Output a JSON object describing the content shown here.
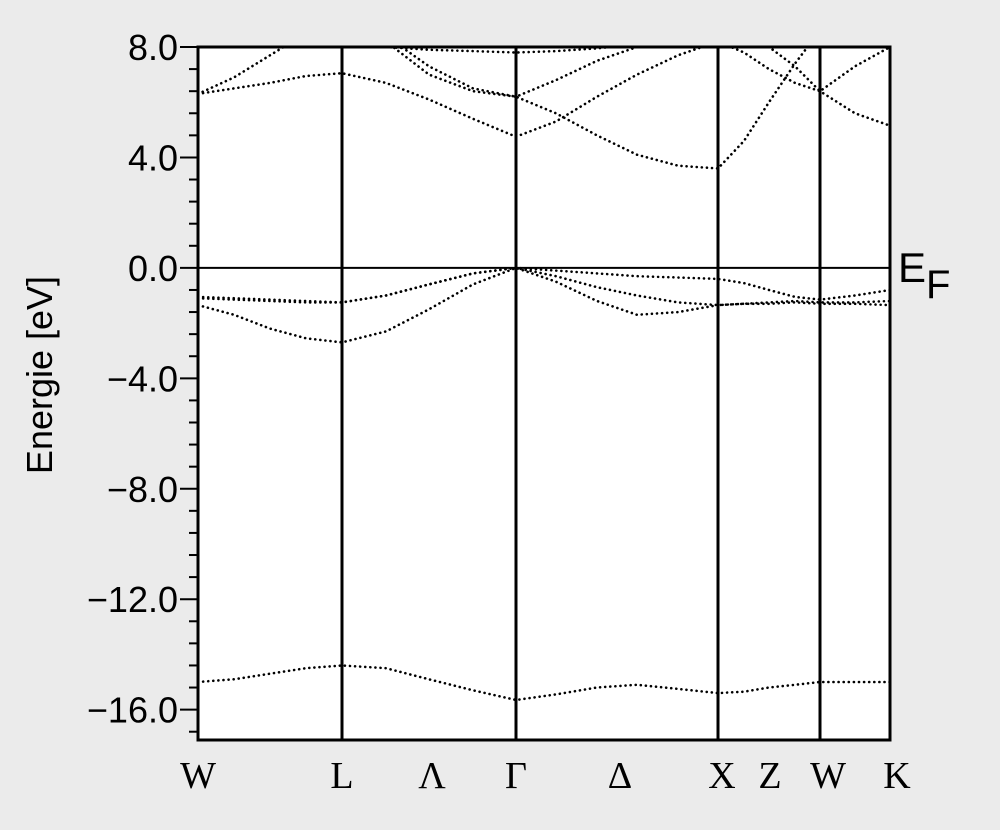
{
  "chart_data": {
    "type": "line",
    "ylabel": "Energie [eV]",
    "x": [
      0,
      0.36,
      0.72,
      1.08,
      1.44,
      1.88,
      2.31,
      2.75,
      3.18,
      3.58,
      3.99,
      4.39,
      4.8,
      5.2,
      5.46,
      5.71,
      5.97,
      6.22,
      6.57,
      6.92
    ],
    "xlim": [
      0,
      6.92
    ],
    "ylim": [
      -17.1,
      8
    ],
    "xticks": [
      {
        "value": 0,
        "label": "W"
      },
      {
        "value": 1.44,
        "label": "L"
      },
      {
        "value": 2.34,
        "label": "Λ"
      },
      {
        "value": 3.18,
        "label": "Γ"
      },
      {
        "value": 4.22,
        "label": "Δ"
      },
      {
        "value": 5.24,
        "label": "X"
      },
      {
        "value": 5.72,
        "label": "Z"
      },
      {
        "value": 6.3,
        "label": "W"
      },
      {
        "value": 6.99,
        "label": "K"
      }
    ],
    "vlines": [
      1.44,
      3.18,
      5.2,
      6.22
    ],
    "yticks": [
      {
        "value": 8,
        "label": "8.0"
      },
      {
        "value": 4,
        "label": "4.0"
      },
      {
        "value": 0,
        "label": "0.0"
      },
      {
        "value": -4,
        "label": "−4.0"
      },
      {
        "value": -8,
        "label": "−8.0"
      },
      {
        "value": -12,
        "label": "−12.0"
      },
      {
        "value": -16,
        "label": "−16.0"
      }
    ],
    "yminorticks": [
      -16.8,
      -15.2,
      -14.4,
      -13.6,
      -12.8,
      -11.2,
      -10.4,
      -9.6,
      -8.8,
      -7.2,
      -6.4,
      -5.6,
      -4.8,
      -3.2,
      -2.4,
      -1.6,
      -0.8,
      0.8,
      1.6,
      2.4,
      3.2,
      4.8,
      5.6,
      6.4,
      7.2
    ],
    "fermi_level": 0,
    "fermi_label": "E",
    "fermi_subscript": "F",
    "series": [
      {
        "color": "#000000",
        "values": [
          -15.0,
          -14.9,
          -14.7,
          -14.5,
          -14.4,
          -14.5,
          -14.9,
          -15.3,
          -15.65,
          -15.45,
          -15.2,
          -15.1,
          -15.25,
          -15.4,
          -15.35,
          -15.2,
          -15.1,
          -15.0,
          -15.0,
          -15.0
        ]
      },
      {
        "color": "#000000",
        "values": [
          -1.35,
          -1.7,
          -2.2,
          -2.55,
          -2.7,
          -2.3,
          -1.5,
          -0.6,
          0,
          -0.5,
          -1.2,
          -1.7,
          -1.6,
          -1.35,
          -1.3,
          -1.3,
          -1.25,
          -1.3,
          -1.3,
          -1.35
        ]
      },
      {
        "color": "#000000",
        "values": [
          -1.1,
          -1.15,
          -1.2,
          -1.25,
          -1.25,
          -1.0,
          -0.6,
          -0.2,
          0,
          -0.3,
          -0.7,
          -1.0,
          -1.25,
          -1.35,
          -1.3,
          -1.25,
          -1.2,
          -1.25,
          -1.25,
          -1.2
        ]
      },
      {
        "color": "#000000",
        "values": [
          -1.05,
          -1.1,
          -1.15,
          -1.2,
          -1.25,
          -1.0,
          -0.6,
          -0.2,
          0,
          -0.1,
          -0.2,
          -0.3,
          -0.35,
          -0.4,
          -0.55,
          -0.8,
          -1.05,
          -1.15,
          -1.0,
          -0.8
        ]
      },
      {
        "color": "#000000",
        "values": [
          6.3,
          6.5,
          6.7,
          6.95,
          7.05,
          6.7,
          6.1,
          5.4,
          4.75,
          5.3,
          6.2,
          7.0,
          7.7,
          8.2,
          7.8,
          7.2,
          6.7,
          6.4,
          5.6,
          5.15
        ]
      },
      {
        "color": "#000000",
        "values": [
          6.3,
          6.9,
          7.7,
          8.5,
          9.0,
          8.4,
          7.3,
          6.5,
          6.2,
          5.6,
          4.8,
          4.1,
          3.7,
          3.6,
          4.6,
          6.0,
          7.4,
          8.6,
          9.2,
          9.6
        ]
      },
      {
        "color": "#000000",
        "values": [
          9.5,
          9.5,
          9.2,
          9.0,
          8.9,
          8.2,
          7.0,
          6.4,
          6.2,
          6.8,
          7.5,
          8.0,
          8.4,
          8.7,
          8.5,
          8.0,
          7.3,
          6.4,
          7.3,
          8.0
        ]
      },
      {
        "color": "#000000",
        "values": [
          8.5,
          8.5,
          8.4,
          8.2,
          8.1,
          8.0,
          7.9,
          7.85,
          7.8,
          7.85,
          7.95,
          8.1,
          8.3,
          8.5,
          8.6,
          8.6,
          8.6,
          8.6,
          8.6,
          8.6
        ]
      }
    ]
  }
}
